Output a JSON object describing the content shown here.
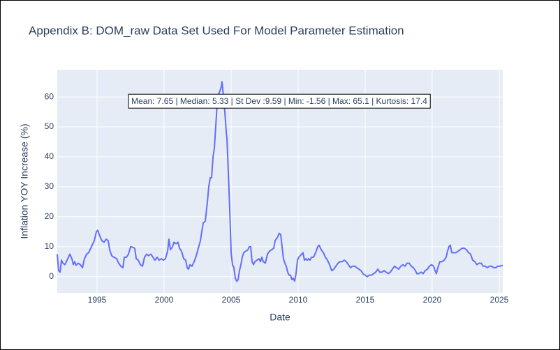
{
  "chart_data": {
    "type": "line",
    "title": "Appendix B: DOM_raw Data Set Used For Model Parameter Estimation",
    "x_label": "Date",
    "y_label": "Inflation YOY Increase (%)",
    "annotation": "Mean: 7.65 | Median: 5.33 | St Dev :9.59 | Min: -1.56 | Max: 65.1 | Kurtosis: 17.4",
    "color": "#636efa",
    "grid": true,
    "xlim": [
      1992.03,
      2025.26
    ],
    "xticks": [
      1995,
      2000,
      2005,
      2010,
      2015,
      2020,
      2025
    ],
    "ylim": [
      -5.4,
      69.1
    ],
    "yticks": [
      0,
      10,
      20,
      30,
      40,
      50,
      60
    ],
    "x": [
      1992.03,
      1992.13,
      1992.24,
      1992.34,
      1992.45,
      1992.6,
      1992.76,
      1992.97,
      1993.12,
      1993.23,
      1993.33,
      1993.44,
      1993.59,
      1993.75,
      1993.91,
      1994.06,
      1994.22,
      1994.37,
      1994.58,
      1994.79,
      1994.95,
      1995.05,
      1995.21,
      1995.36,
      1995.52,
      1995.68,
      1995.83,
      1995.94,
      1996.09,
      1996.25,
      1996.46,
      1996.61,
      1996.77,
      1996.93,
      1997.03,
      1997.19,
      1997.34,
      1997.5,
      1997.66,
      1997.81,
      1997.92,
      1998.07,
      1998.23,
      1998.39,
      1998.54,
      1998.7,
      1998.85,
      1999.01,
      1999.17,
      1999.32,
      1999.48,
      1999.63,
      1999.79,
      1999.95,
      2000.1,
      2000.26,
      2000.36,
      2000.47,
      2000.63,
      2000.73,
      2000.89,
      2001.04,
      2001.15,
      2001.3,
      2001.46,
      2001.61,
      2001.72,
      2001.82,
      2001.93,
      2002.08,
      2002.24,
      2002.4,
      2002.55,
      2002.71,
      2002.81,
      2002.92,
      2003.07,
      2003.23,
      2003.33,
      2003.44,
      2003.54,
      2003.65,
      2003.75,
      2003.85,
      2003.96,
      2004.06,
      2004.17,
      2004.27,
      2004.32,
      2004.43,
      2004.53,
      2004.64,
      2004.69,
      2004.79,
      2004.9,
      2005.0,
      2005.1,
      2005.21,
      2005.31,
      2005.42,
      2005.52,
      2005.62,
      2005.73,
      2005.83,
      2005.94,
      2006.09,
      2006.25,
      2006.35,
      2006.46,
      2006.56,
      2006.67,
      2006.77,
      2006.93,
      2007.08,
      2007.19,
      2007.29,
      2007.4,
      2007.55,
      2007.71,
      2007.86,
      2008.02,
      2008.18,
      2008.28,
      2008.44,
      2008.59,
      2008.7,
      2008.8,
      2008.9,
      2009.01,
      2009.11,
      2009.22,
      2009.32,
      2009.43,
      2009.53,
      2009.63,
      2009.74,
      2009.84,
      2009.95,
      2010.05,
      2010.15,
      2010.26,
      2010.36,
      2010.47,
      2010.57,
      2010.67,
      2010.78,
      2010.88,
      2010.99,
      2011.15,
      2011.3,
      2011.46,
      2011.56,
      2011.72,
      2011.88,
      2012.03,
      2012.19,
      2012.34,
      2012.5,
      2012.66,
      2012.81,
      2012.97,
      2013.12,
      2013.28,
      2013.44,
      2013.59,
      2013.75,
      2013.9,
      2014.06,
      2014.22,
      2014.37,
      2014.53,
      2014.69,
      2014.84,
      2015.0,
      2015.15,
      2015.31,
      2015.47,
      2015.62,
      2015.78,
      2015.94,
      2016.09,
      2016.25,
      2016.41,
      2016.56,
      2016.72,
      2016.87,
      2017.03,
      2017.19,
      2017.34,
      2017.5,
      2017.66,
      2017.81,
      2017.97,
      2018.12,
      2018.28,
      2018.44,
      2018.59,
      2018.75,
      2018.85,
      2019.01,
      2019.17,
      2019.32,
      2019.48,
      2019.64,
      2019.79,
      2019.95,
      2020.1,
      2020.21,
      2020.31,
      2020.42,
      2020.57,
      2020.73,
      2020.89,
      2021.04,
      2021.14,
      2021.25,
      2021.35,
      2021.46,
      2021.61,
      2021.77,
      2021.93,
      2022.08,
      2022.24,
      2022.4,
      2022.55,
      2022.71,
      2022.86,
      2023.02,
      2023.18,
      2023.33,
      2023.49,
      2023.65,
      2023.8,
      2023.96,
      2024.11,
      2024.27,
      2024.43,
      2024.58,
      2024.74,
      2024.9,
      2025.05,
      2025.26
    ],
    "values": [
      7.5,
      2,
      1.5,
      5.5,
      4.5,
      4,
      5.5,
      7.5,
      6,
      4,
      5,
      3.8,
      4.5,
      4,
      3,
      6,
      7.5,
      8,
      10,
      12,
      15,
      15.5,
      13.5,
      12,
      11.5,
      12.5,
      12,
      9,
      7,
      6.5,
      6,
      4.5,
      3.5,
      3,
      6.5,
      6.5,
      7.5,
      10,
      9.8,
      9.5,
      6,
      5.5,
      4,
      3.5,
      6.5,
      7.5,
      7,
      7.5,
      6.5,
      5.5,
      6.5,
      5.5,
      6,
      5.5,
      6,
      8.5,
      12.5,
      9,
      10,
      11.5,
      11,
      11.5,
      9.5,
      8.5,
      6,
      5.5,
      3,
      2.5,
      4,
      3.5,
      5,
      7,
      9.5,
      12,
      15,
      18,
      18.5,
      25,
      30,
      33,
      33,
      40,
      43,
      50,
      58,
      61,
      62,
      63.5,
      65.1,
      60,
      55,
      48,
      46,
      35,
      22,
      8,
      4,
      3,
      -0.5,
      -1.56,
      -1,
      2,
      4,
      6.5,
      8,
      8.5,
      9,
      10,
      10,
      5,
      4,
      5,
      5.5,
      6,
      5,
      6.5,
      5,
      4.5,
      7.5,
      8.5,
      9,
      9.5,
      12,
      13,
      14.5,
      14,
      10,
      6,
      4.5,
      3.5,
      1.5,
      0.5,
      0.5,
      -1,
      -0.5,
      -1.5,
      1,
      5.5,
      6.5,
      7,
      7.5,
      8,
      5.5,
      6,
      5.5,
      6,
      5.5,
      6.5,
      6.5,
      8,
      10,
      10.5,
      9,
      8,
      6.5,
      5.5,
      4,
      2,
      2.5,
      3.5,
      4.5,
      5,
      5,
      5.5,
      5,
      4,
      3,
      3.5,
      3.5,
      3,
      2.5,
      2,
      1,
      0.5,
      0,
      0.5,
      0.5,
      1,
      1.5,
      2.5,
      1.5,
      1.5,
      2,
      1.5,
      1,
      1.5,
      2.5,
      3.5,
      3,
      2.5,
      3.5,
      4,
      3.5,
      4.5,
      4.5,
      3.5,
      3,
      2,
      1,
      1,
      1.5,
      1,
      2,
      2.5,
      3.5,
      4,
      3.5,
      2,
      1,
      3,
      5,
      5,
      5.5,
      6.5,
      8.5,
      10,
      10.5,
      8,
      8,
      8,
      8.5,
      9,
      9.5,
      9.5,
      9,
      8,
      7.5,
      5.5,
      5,
      4,
      4.5,
      4.5,
      3.5,
      3.5,
      3,
      3.5,
      3.5,
      3,
      3,
      3.5,
      3.5,
      3.8
    ]
  }
}
